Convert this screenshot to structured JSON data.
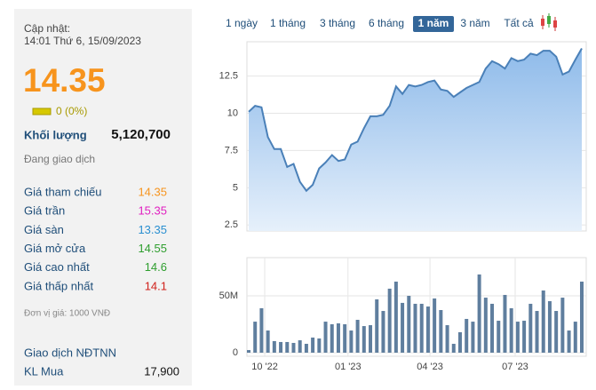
{
  "panel": {
    "update_label": "Cập nhật:",
    "update_time": "14:01 Thứ 6, 15/09/2023",
    "price": "14.35",
    "change": "0 (0%)",
    "volume_label": "Khối lượng",
    "volume": "5,120,700",
    "status": "Đang giao dịch",
    "rows": [
      {
        "label": "Giá tham chiếu",
        "value": "14.35",
        "color": "#f7941d"
      },
      {
        "label": "Giá trần",
        "value": "15.35",
        "color": "#e020c0"
      },
      {
        "label": "Giá sàn",
        "value": "13.35",
        "color": "#2a8fd0"
      },
      {
        "label": "Giá mở cửa",
        "value": "14.55",
        "color": "#2e9e2e"
      },
      {
        "label": "Giá cao nhất",
        "value": "14.6",
        "color": "#2e9e2e"
      },
      {
        "label": "Giá thấp nhất",
        "value": "14.1",
        "color": "#d0201a"
      }
    ],
    "unit_note": "Đơn vị giá: 1000 VNĐ",
    "foreign_title": "Giao dịch NĐTNN",
    "foreign_rows": [
      {
        "label": "KL Mua",
        "value": "17,900"
      }
    ]
  },
  "tabs": [
    "1 ngày",
    "1 tháng",
    "3 tháng",
    "6 tháng",
    "1 năm",
    "3 năm",
    "Tất cả"
  ],
  "active_tab": 4,
  "chart_data": [
    {
      "type": "area",
      "color": "#4a80b8",
      "x": [
        0,
        1,
        2,
        3,
        4,
        5,
        6,
        7,
        8,
        9,
        10,
        11,
        12,
        13,
        14,
        15,
        16,
        17,
        18,
        19,
        20,
        21,
        22,
        23,
        24,
        25,
        26,
        27,
        28,
        29,
        30,
        31,
        32,
        33,
        34,
        35,
        36,
        37,
        38,
        39,
        40,
        41,
        42,
        43,
        44,
        45,
        46,
        47,
        48,
        49,
        50,
        51,
        52
      ],
      "values": [
        10.1,
        10.5,
        10.4,
        8.4,
        7.6,
        7.6,
        6.4,
        6.6,
        5.4,
        4.8,
        5.2,
        6.3,
        6.7,
        7.2,
        6.8,
        6.9,
        7.9,
        8.1,
        9.0,
        9.8,
        9.8,
        9.9,
        10.5,
        11.8,
        11.3,
        11.9,
        11.8,
        11.9,
        12.1,
        12.2,
        11.6,
        11.5,
        11.1,
        11.4,
        11.7,
        11.9,
        12.1,
        13.0,
        13.5,
        13.3,
        13.0,
        13.7,
        13.5,
        13.6,
        14.0,
        13.9,
        14.2,
        14.2,
        13.8,
        12.6,
        12.8,
        13.6,
        14.35
      ],
      "xlim": [
        0,
        52
      ],
      "ylim": [
        2.1,
        14.8
      ],
      "yticks": [
        2.5,
        5,
        7.5,
        10,
        12.5
      ],
      "grid": true
    },
    {
      "type": "bar",
      "color": "#5f7e9e",
      "x": [
        0,
        1,
        2,
        3,
        4,
        5,
        6,
        7,
        8,
        9,
        10,
        11,
        12,
        13,
        14,
        15,
        16,
        17,
        18,
        19,
        20,
        21,
        22,
        23,
        24,
        25,
        26,
        27,
        28,
        29,
        30,
        31,
        32,
        33,
        34,
        35,
        36,
        37,
        38,
        39,
        40,
        41,
        42,
        43,
        44,
        45,
        46,
        47,
        48,
        49,
        50,
        51,
        52
      ],
      "values": [
        2300000,
        27300000,
        39100000,
        19500000,
        10200000,
        9400000,
        9400000,
        8600000,
        10900000,
        7800000,
        13300000,
        12500000,
        27300000,
        25000000,
        25800000,
        25000000,
        19500000,
        28900000,
        23400000,
        24200000,
        46900000,
        36700000,
        56300000,
        62500000,
        43800000,
        50000000,
        43000000,
        43000000,
        40600000,
        47700000,
        37500000,
        24200000,
        7800000,
        18000000,
        29700000,
        27300000,
        68800000,
        48400000,
        43000000,
        28100000,
        50800000,
        39100000,
        27300000,
        28100000,
        43000000,
        36700000,
        54700000,
        45300000,
        36700000,
        48400000,
        19500000,
        27300000,
        62500000
      ],
      "xlim": [
        0,
        52
      ],
      "ylim": [
        0,
        83600000
      ],
      "yticks": [
        0,
        {
          "value": 50000000,
          "label": "50M"
        }
      ],
      "xticks": [
        {
          "value": 2.5,
          "label": "10 '22"
        },
        {
          "value": 15.5,
          "label": "01 '23"
        },
        {
          "value": 28.3,
          "label": "04 '23"
        },
        {
          "value": 41.6,
          "label": "07 '23"
        }
      ],
      "grid": true
    }
  ]
}
